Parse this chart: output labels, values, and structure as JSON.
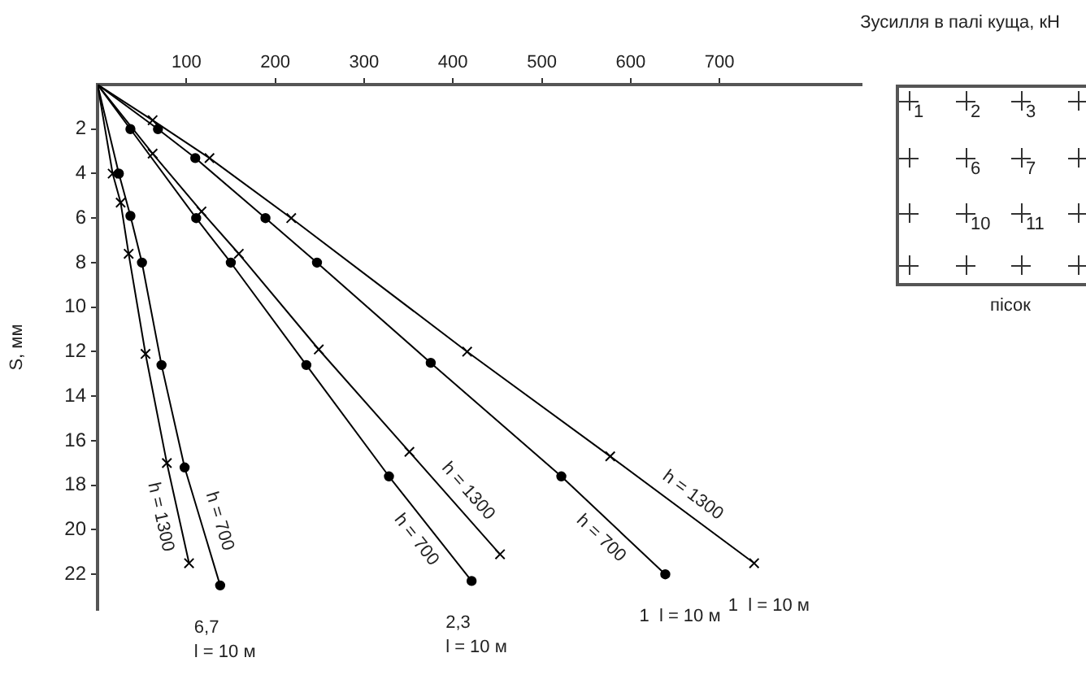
{
  "chart_data": {
    "type": "line",
    "xlabel": "Зусилля в палі куща, кН",
    "ylabel": "S, мм",
    "xlim": [
      0,
      860
    ],
    "xticks": [
      100,
      200,
      300,
      400,
      500,
      600,
      700
    ],
    "ylim": [
      23.6,
      0
    ],
    "yticks": [
      2,
      4,
      6,
      8,
      10,
      12,
      14,
      16,
      18,
      20,
      22
    ],
    "legend": false,
    "series": [
      {
        "name": "h = 1300",
        "color": "#000000",
        "marker": "cross",
        "x": [
          0,
          17,
          26,
          35,
          54,
          78,
          103
        ],
        "values": [
          0,
          4.0,
          5.3,
          7.6,
          12.1,
          17.0,
          21.5
        ]
      },
      {
        "name": "h = 700",
        "color": "#000000",
        "marker": "circle",
        "x": [
          0,
          24,
          37,
          50,
          72,
          98,
          138
        ],
        "values": [
          0,
          4.0,
          5.9,
          8.0,
          12.6,
          17.2,
          22.5
        ]
      },
      {
        "name": "h = 700",
        "color": "#000000",
        "marker": "circle",
        "x": [
          0,
          37,
          111,
          150,
          235,
          328,
          421
        ],
        "values": [
          0,
          2.0,
          6.0,
          8.0,
          12.6,
          17.6,
          22.3
        ]
      },
      {
        "name": "h = 1300",
        "color": "#000000",
        "marker": "cross",
        "x": [
          0,
          62,
          117,
          159,
          249,
          351,
          453
        ],
        "values": [
          0,
          3.1,
          5.7,
          7.6,
          11.9,
          16.5,
          21.1
        ]
      },
      {
        "name": "h = 700",
        "color": "#000000",
        "marker": "circle",
        "x": [
          0,
          68,
          110,
          189,
          247,
          375,
          522,
          639
        ],
        "values": [
          0,
          2.0,
          3.3,
          6.0,
          8.0,
          12.5,
          17.6,
          22.0
        ]
      },
      {
        "name": "h = 1300",
        "color": "#000000",
        "marker": "cross",
        "x": [
          0,
          62,
          126,
          218,
          416,
          577,
          739
        ],
        "values": [
          0,
          1.6,
          3.3,
          6.0,
          12.0,
          16.7,
          21.5
        ]
      }
    ],
    "annotations": [
      {
        "text": "6,7\nl = 10 м",
        "x": 138,
        "y": 22.5
      },
      {
        "text": "2,3\nl = 10 м",
        "x": 421,
        "y": 22.3
      },
      {
        "text": "1  l = 10 м",
        "x": 639,
        "y": 22.0
      },
      {
        "text": "1  l = 10 м",
        "x": 739,
        "y": 21.5
      },
      "1",
      "2",
      "3",
      "6",
      "7",
      "10",
      "11",
      "пісок"
    ]
  }
}
